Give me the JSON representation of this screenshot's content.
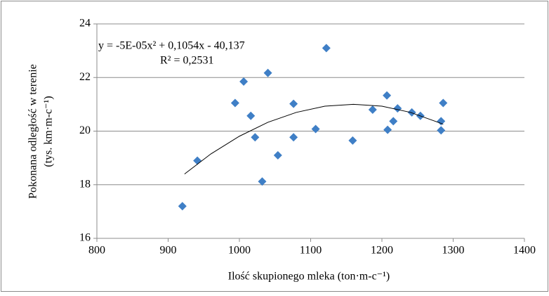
{
  "chart_data": {
    "type": "scatter",
    "x_label": "Ilość skupionego mleka (ton·m-c⁻¹)",
    "y_label": [
      "Pokonana odległość w terenie",
      "(tys. km·m-c⁻¹)"
    ],
    "annotations": [
      "y = -5E-05x² + 0,1054x - 40,137",
      "R² = 0,2531"
    ],
    "color": "#3f7fc6",
    "x": [
      920,
      941,
      994,
      1006,
      1016,
      1022,
      1032,
      1040,
      1054,
      1076,
      1076,
      1107,
      1122,
      1159,
      1187,
      1207,
      1208,
      1216,
      1222,
      1242,
      1254,
      1283,
      1283,
      1286
    ],
    "values": [
      17.2,
      18.9,
      21.05,
      21.85,
      20.57,
      19.77,
      18.12,
      22.17,
      19.1,
      21.02,
      19.77,
      20.08,
      23.1,
      19.65,
      20.8,
      21.33,
      20.05,
      20.37,
      20.85,
      20.7,
      20.57,
      20.37,
      20.03,
      21.05
    ],
    "trendline": {
      "color": "#000000",
      "x": [
        923,
        960,
        1000,
        1040,
        1080,
        1120,
        1160,
        1200,
        1240,
        1286
      ],
      "values": [
        18.4,
        19.15,
        19.81,
        20.33,
        20.7,
        20.93,
        21.0,
        20.93,
        20.7,
        20.26
      ]
    },
    "xlim": [
      800,
      1400
    ],
    "xticks": [
      800,
      900,
      1000,
      1100,
      1200,
      1300,
      1400
    ],
    "ylim": [
      16,
      24
    ],
    "yticks": [
      16,
      18,
      20,
      22,
      24
    ],
    "grid": true
  }
}
